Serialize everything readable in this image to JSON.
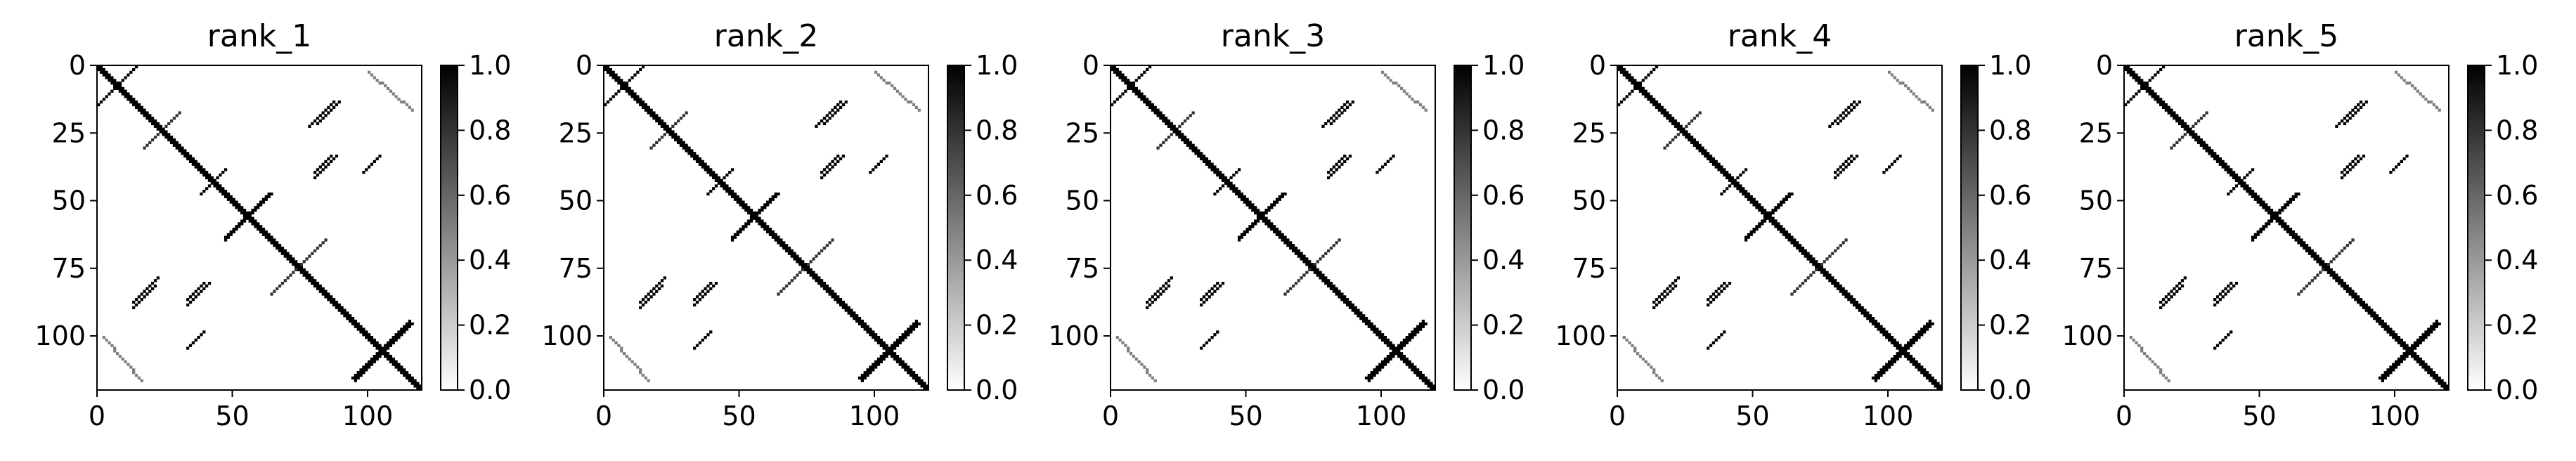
{
  "chart_data": [
    {
      "type": "heatmap",
      "title": "rank_1",
      "matrix_size": 120,
      "x_ticks": [
        0,
        50,
        100
      ],
      "y_ticks": [
        0,
        25,
        50,
        75,
        100
      ],
      "x_range": [
        0,
        120
      ],
      "y_range": [
        0,
        120
      ],
      "y_inverted": true,
      "colorbar": {
        "range": [
          0.0,
          1.0
        ],
        "ticks": [
          "0.0",
          "0.2",
          "0.4",
          "0.6",
          "0.8",
          "1.0"
        ],
        "colormap": "Greys"
      },
      "segments": [
        {
          "name": "diagonal",
          "from": [
            0,
            0
          ],
          "to": [
            120,
            120
          ],
          "value": 1.0,
          "width": 3
        },
        {
          "name": "antidiagonal-top-left",
          "from": [
            14,
            0
          ],
          "to": [
            0,
            14
          ],
          "value": 1.0,
          "width": 1
        },
        {
          "name": "antidiagonal-a",
          "from": [
            30,
            17
          ],
          "to": [
            17,
            30
          ],
          "value": 0.8,
          "width": 1
        },
        {
          "name": "antidiagonal-b",
          "from": [
            63,
            47
          ],
          "to": [
            47,
            63
          ],
          "value": 1.0,
          "width": 2
        },
        {
          "name": "antidiagonal-c",
          "from": [
            84,
            64
          ],
          "to": [
            64,
            84
          ],
          "value": 0.8,
          "width": 1
        },
        {
          "name": "antidiagonal-d",
          "from": [
            115,
            95
          ],
          "to": [
            95,
            115
          ],
          "value": 1.0,
          "width": 3
        },
        {
          "name": "offdiag-upper-1",
          "from": [
            39,
            46
          ],
          "to": [
            47,
            38
          ],
          "value": 1.0,
          "width": 1
        },
        {
          "name": "offdiag-upper-2",
          "from": [
            78,
            22
          ],
          "to": [
            87,
            13
          ],
          "value": 1.0,
          "width": 1
        },
        {
          "name": "offdiag-upper-3",
          "from": [
            80,
            39
          ],
          "to": [
            86,
            33
          ],
          "value": 1.0,
          "width": 1
        },
        {
          "name": "offdiag-lower-1",
          "from": [
            13,
            89
          ],
          "to": [
            21,
            81
          ],
          "value": 1.0,
          "width": 1
        },
        {
          "name": "offdiag-lower-2",
          "from": [
            33,
            88
          ],
          "to": [
            41,
            80
          ],
          "value": 1.0,
          "width": 1
        },
        {
          "name": "offdiag-lower-3",
          "from": [
            33,
            104
          ],
          "to": [
            39,
            98
          ],
          "value": 1.0,
          "width": 1
        },
        {
          "name": "arc-top-right",
          "from": [
            100,
            2
          ],
          "to": [
            116,
            16
          ],
          "value": 0.5,
          "width": 1
        },
        {
          "name": "arc-bottom-left",
          "from": [
            2,
            100
          ],
          "to": [
            16,
            116
          ],
          "value": 0.5,
          "width": 1
        }
      ]
    },
    {
      "type": "heatmap",
      "title": "rank_2",
      "matrix_size": 120,
      "x_ticks": [
        0,
        50,
        100
      ],
      "y_ticks": [
        0,
        25,
        50,
        75,
        100
      ],
      "x_range": [
        0,
        120
      ],
      "y_range": [
        0,
        120
      ],
      "y_inverted": true,
      "colorbar": {
        "range": [
          0.0,
          1.0
        ],
        "ticks": [
          "0.0",
          "0.2",
          "0.4",
          "0.6",
          "0.8",
          "1.0"
        ],
        "colormap": "Greys"
      },
      "segments": [
        {
          "name": "diagonal",
          "from": [
            0,
            0
          ],
          "to": [
            120,
            120
          ],
          "value": 1.0,
          "width": 3
        },
        {
          "name": "antidiagonal-top-left",
          "from": [
            14,
            0
          ],
          "to": [
            0,
            14
          ],
          "value": 1.0,
          "width": 1
        },
        {
          "name": "antidiagonal-a",
          "from": [
            30,
            17
          ],
          "to": [
            17,
            30
          ],
          "value": 0.8,
          "width": 1
        },
        {
          "name": "antidiagonal-b",
          "from": [
            63,
            47
          ],
          "to": [
            47,
            63
          ],
          "value": 1.0,
          "width": 2
        },
        {
          "name": "antidiagonal-c",
          "from": [
            84,
            64
          ],
          "to": [
            64,
            84
          ],
          "value": 0.8,
          "width": 1
        },
        {
          "name": "antidiagonal-d",
          "from": [
            115,
            95
          ],
          "to": [
            95,
            115
          ],
          "value": 1.0,
          "width": 3
        },
        {
          "name": "offdiag-upper-1",
          "from": [
            39,
            46
          ],
          "to": [
            47,
            38
          ],
          "value": 1.0,
          "width": 1
        },
        {
          "name": "offdiag-upper-2",
          "from": [
            78,
            22
          ],
          "to": [
            87,
            13
          ],
          "value": 1.0,
          "width": 1
        },
        {
          "name": "offdiag-upper-3",
          "from": [
            80,
            39
          ],
          "to": [
            86,
            33
          ],
          "value": 1.0,
          "width": 1
        },
        {
          "name": "offdiag-lower-1",
          "from": [
            13,
            89
          ],
          "to": [
            21,
            81
          ],
          "value": 1.0,
          "width": 1
        },
        {
          "name": "offdiag-lower-2",
          "from": [
            33,
            88
          ],
          "to": [
            41,
            80
          ],
          "value": 1.0,
          "width": 1
        },
        {
          "name": "offdiag-lower-3",
          "from": [
            33,
            104
          ],
          "to": [
            39,
            98
          ],
          "value": 1.0,
          "width": 1
        },
        {
          "name": "arc-top-right",
          "from": [
            100,
            2
          ],
          "to": [
            116,
            16
          ],
          "value": 0.5,
          "width": 1
        },
        {
          "name": "arc-bottom-left",
          "from": [
            2,
            100
          ],
          "to": [
            16,
            116
          ],
          "value": 0.5,
          "width": 1
        }
      ]
    },
    {
      "type": "heatmap",
      "title": "rank_3",
      "matrix_size": 120,
      "x_ticks": [
        0,
        50,
        100
      ],
      "y_ticks": [
        0,
        25,
        50,
        75,
        100
      ],
      "x_range": [
        0,
        120
      ],
      "y_range": [
        0,
        120
      ],
      "y_inverted": true,
      "colorbar": {
        "range": [
          0.0,
          1.0
        ],
        "ticks": [
          "0.0",
          "0.2",
          "0.4",
          "0.6",
          "0.8",
          "1.0"
        ],
        "colormap": "Greys"
      },
      "segments": [
        {
          "name": "diagonal",
          "from": [
            0,
            0
          ],
          "to": [
            120,
            120
          ],
          "value": 1.0,
          "width": 3
        },
        {
          "name": "antidiagonal-top-left",
          "from": [
            14,
            0
          ],
          "to": [
            0,
            14
          ],
          "value": 1.0,
          "width": 1
        },
        {
          "name": "antidiagonal-a",
          "from": [
            30,
            17
          ],
          "to": [
            17,
            30
          ],
          "value": 0.8,
          "width": 1
        },
        {
          "name": "antidiagonal-b",
          "from": [
            63,
            47
          ],
          "to": [
            47,
            63
          ],
          "value": 1.0,
          "width": 2
        },
        {
          "name": "antidiagonal-c",
          "from": [
            84,
            64
          ],
          "to": [
            64,
            84
          ],
          "value": 0.8,
          "width": 1
        },
        {
          "name": "antidiagonal-d",
          "from": [
            115,
            95
          ],
          "to": [
            95,
            115
          ],
          "value": 1.0,
          "width": 3
        },
        {
          "name": "offdiag-upper-1",
          "from": [
            39,
            46
          ],
          "to": [
            47,
            38
          ],
          "value": 1.0,
          "width": 1
        },
        {
          "name": "offdiag-upper-2",
          "from": [
            78,
            22
          ],
          "to": [
            87,
            13
          ],
          "value": 1.0,
          "width": 1
        },
        {
          "name": "offdiag-upper-3",
          "from": [
            80,
            39
          ],
          "to": [
            86,
            33
          ],
          "value": 1.0,
          "width": 1
        },
        {
          "name": "offdiag-lower-1",
          "from": [
            13,
            89
          ],
          "to": [
            21,
            81
          ],
          "value": 1.0,
          "width": 1
        },
        {
          "name": "offdiag-lower-2",
          "from": [
            33,
            88
          ],
          "to": [
            41,
            80
          ],
          "value": 1.0,
          "width": 1
        },
        {
          "name": "offdiag-lower-3",
          "from": [
            33,
            104
          ],
          "to": [
            39,
            98
          ],
          "value": 1.0,
          "width": 1
        },
        {
          "name": "arc-top-right",
          "from": [
            100,
            2
          ],
          "to": [
            116,
            16
          ],
          "value": 0.5,
          "width": 1
        },
        {
          "name": "arc-bottom-left",
          "from": [
            2,
            100
          ],
          "to": [
            16,
            116
          ],
          "value": 0.5,
          "width": 1
        }
      ]
    },
    {
      "type": "heatmap",
      "title": "rank_4",
      "matrix_size": 120,
      "x_ticks": [
        0,
        50,
        100
      ],
      "y_ticks": [
        0,
        25,
        50,
        75,
        100
      ],
      "x_range": [
        0,
        120
      ],
      "y_range": [
        0,
        120
      ],
      "y_inverted": true,
      "colorbar": {
        "range": [
          0.0,
          1.0
        ],
        "ticks": [
          "0.0",
          "0.2",
          "0.4",
          "0.6",
          "0.8",
          "1.0"
        ],
        "colormap": "Greys"
      },
      "segments": [
        {
          "name": "diagonal",
          "from": [
            0,
            0
          ],
          "to": [
            120,
            120
          ],
          "value": 1.0,
          "width": 3
        },
        {
          "name": "antidiagonal-top-left",
          "from": [
            14,
            0
          ],
          "to": [
            0,
            14
          ],
          "value": 1.0,
          "width": 1
        },
        {
          "name": "antidiagonal-a",
          "from": [
            30,
            17
          ],
          "to": [
            17,
            30
          ],
          "value": 0.8,
          "width": 1
        },
        {
          "name": "antidiagonal-b",
          "from": [
            63,
            47
          ],
          "to": [
            47,
            63
          ],
          "value": 1.0,
          "width": 2
        },
        {
          "name": "antidiagonal-c",
          "from": [
            84,
            64
          ],
          "to": [
            64,
            84
          ],
          "value": 0.8,
          "width": 1
        },
        {
          "name": "antidiagonal-d",
          "from": [
            115,
            95
          ],
          "to": [
            95,
            115
          ],
          "value": 1.0,
          "width": 3
        },
        {
          "name": "offdiag-upper-1",
          "from": [
            39,
            46
          ],
          "to": [
            47,
            38
          ],
          "value": 1.0,
          "width": 1
        },
        {
          "name": "offdiag-upper-2",
          "from": [
            78,
            22
          ],
          "to": [
            87,
            13
          ],
          "value": 1.0,
          "width": 1
        },
        {
          "name": "offdiag-upper-3",
          "from": [
            80,
            39
          ],
          "to": [
            86,
            33
          ],
          "value": 1.0,
          "width": 1
        },
        {
          "name": "offdiag-lower-1",
          "from": [
            13,
            89
          ],
          "to": [
            21,
            81
          ],
          "value": 1.0,
          "width": 1
        },
        {
          "name": "offdiag-lower-2",
          "from": [
            33,
            88
          ],
          "to": [
            41,
            80
          ],
          "value": 1.0,
          "width": 1
        },
        {
          "name": "offdiag-lower-3",
          "from": [
            33,
            104
          ],
          "to": [
            39,
            98
          ],
          "value": 1.0,
          "width": 1
        },
        {
          "name": "arc-top-right",
          "from": [
            100,
            2
          ],
          "to": [
            116,
            16
          ],
          "value": 0.5,
          "width": 1
        },
        {
          "name": "arc-bottom-left",
          "from": [
            2,
            100
          ],
          "to": [
            16,
            116
          ],
          "value": 0.5,
          "width": 1
        }
      ]
    },
    {
      "type": "heatmap",
      "title": "rank_5",
      "matrix_size": 120,
      "x_ticks": [
        0,
        50,
        100
      ],
      "y_ticks": [
        0,
        25,
        50,
        75,
        100
      ],
      "x_range": [
        0,
        120
      ],
      "y_range": [
        0,
        120
      ],
      "y_inverted": true,
      "colorbar": {
        "range": [
          0.0,
          1.0
        ],
        "ticks": [
          "0.0",
          "0.2",
          "0.4",
          "0.6",
          "0.8",
          "1.0"
        ],
        "colormap": "Greys"
      },
      "segments": [
        {
          "name": "diagonal",
          "from": [
            0,
            0
          ],
          "to": [
            120,
            120
          ],
          "value": 1.0,
          "width": 3
        },
        {
          "name": "antidiagonal-top-left",
          "from": [
            14,
            0
          ],
          "to": [
            0,
            14
          ],
          "value": 1.0,
          "width": 1
        },
        {
          "name": "antidiagonal-a",
          "from": [
            30,
            17
          ],
          "to": [
            17,
            30
          ],
          "value": 0.8,
          "width": 1
        },
        {
          "name": "antidiagonal-b",
          "from": [
            63,
            47
          ],
          "to": [
            47,
            63
          ],
          "value": 1.0,
          "width": 2
        },
        {
          "name": "antidiagonal-c",
          "from": [
            84,
            64
          ],
          "to": [
            64,
            84
          ],
          "value": 0.8,
          "width": 1
        },
        {
          "name": "antidiagonal-d",
          "from": [
            115,
            95
          ],
          "to": [
            95,
            115
          ],
          "value": 1.0,
          "width": 3
        },
        {
          "name": "offdiag-upper-1",
          "from": [
            39,
            46
          ],
          "to": [
            47,
            38
          ],
          "value": 1.0,
          "width": 1
        },
        {
          "name": "offdiag-upper-2",
          "from": [
            78,
            22
          ],
          "to": [
            87,
            13
          ],
          "value": 1.0,
          "width": 1
        },
        {
          "name": "offdiag-upper-3",
          "from": [
            80,
            39
          ],
          "to": [
            86,
            33
          ],
          "value": 1.0,
          "width": 1
        },
        {
          "name": "offdiag-lower-1",
          "from": [
            13,
            89
          ],
          "to": [
            21,
            81
          ],
          "value": 1.0,
          "width": 1
        },
        {
          "name": "offdiag-lower-2",
          "from": [
            33,
            88
          ],
          "to": [
            41,
            80
          ],
          "value": 1.0,
          "width": 1
        },
        {
          "name": "offdiag-lower-3",
          "from": [
            33,
            104
          ],
          "to": [
            39,
            98
          ],
          "value": 1.0,
          "width": 1
        },
        {
          "name": "arc-top-right",
          "from": [
            100,
            2
          ],
          "to": [
            116,
            16
          ],
          "value": 0.5,
          "width": 1
        },
        {
          "name": "arc-bottom-left",
          "from": [
            2,
            100
          ],
          "to": [
            16,
            116
          ],
          "value": 0.5,
          "width": 1
        }
      ]
    }
  ]
}
